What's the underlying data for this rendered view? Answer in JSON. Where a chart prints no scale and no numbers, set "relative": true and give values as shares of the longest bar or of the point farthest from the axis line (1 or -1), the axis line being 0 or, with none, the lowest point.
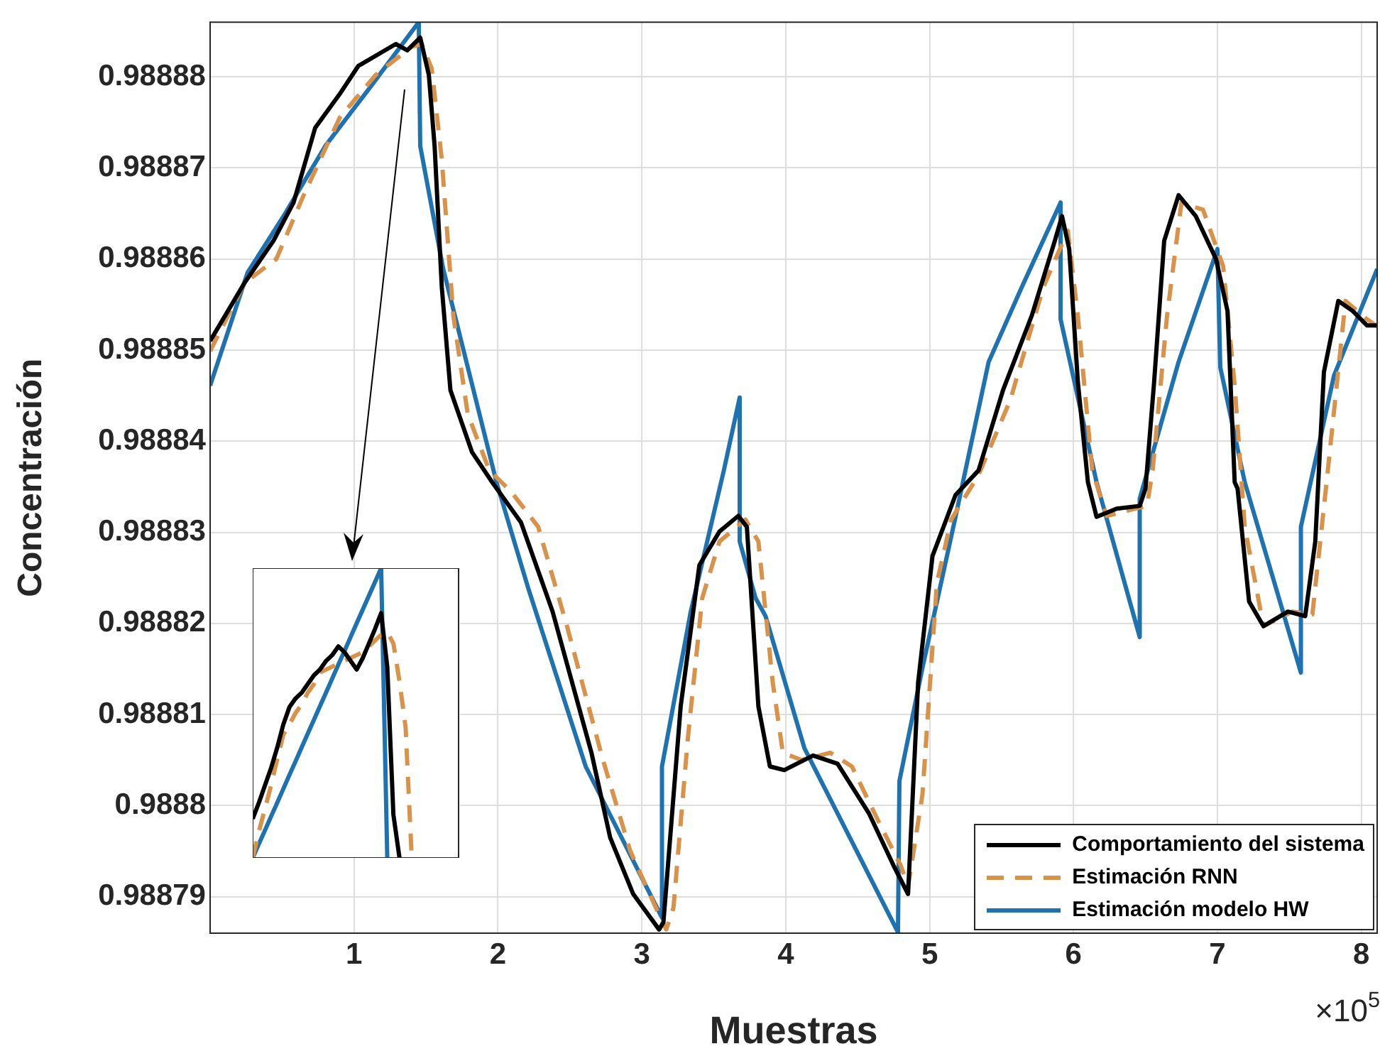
{
  "chart_data": [
    {
      "type": "line",
      "xlabel": "Muestras",
      "ylabel": "Concentración",
      "annotations": [
        "×10$^{5}$"
      ],
      "xlim": [
        0,
        8.11
      ],
      "ylim": [
        0.988786,
        0.988886
      ],
      "xticks": [
        1,
        2,
        3,
        4,
        5,
        6,
        7,
        8
      ],
      "yticks": [
        0.98879,
        0.9888,
        0.98881,
        0.98882,
        0.98883,
        0.98884,
        0.98885,
        0.98886,
        0.98887,
        0.98888
      ],
      "grid": true,
      "legend": "bottom right",
      "marker": "none",
      "series": [
        {
          "name": "Comportamiento del sistema",
          "color": "#000000",
          "line_style": "solid",
          "x": [
            0,
            0.24,
            0.44,
            0.58,
            0.73,
            0.9,
            1.03,
            1.29,
            1.37,
            1.46,
            1.52,
            1.56,
            1.61,
            1.67,
            1.82,
            1.96,
            2.16,
            2.38,
            2.65,
            2.78,
            2.94,
            3.12,
            3.15,
            3.27,
            3.4,
            3.54,
            3.67,
            3.73,
            3.81,
            3.89,
            3.99,
            4.19,
            4.36,
            4.58,
            4.75,
            4.85,
            4.92,
            5.02,
            5.18,
            5.34,
            5.51,
            5.71,
            5.87,
            5.92,
            5.97,
            6.03,
            6.1,
            6.16,
            6.3,
            6.46,
            6.5,
            6.56,
            6.63,
            6.73,
            6.85,
            6.99,
            7.07,
            7.12,
            7.14,
            7.22,
            7.32,
            7.49,
            7.61,
            7.68,
            7.74,
            7.84,
            7.94,
            8.04,
            8.11
          ],
          "values": [
            0.988851,
            0.9888574,
            0.988862,
            0.9888662,
            0.9888744,
            0.9888781,
            0.9888812,
            0.9888836,
            0.9888829,
            0.9888843,
            0.9888802,
            0.9888724,
            0.9888569,
            0.9888456,
            0.9888388,
            0.9888355,
            0.9888311,
            0.9888213,
            0.9888058,
            0.9887965,
            0.9887903,
            0.9887864,
            0.9887872,
            0.9888109,
            0.9888264,
            0.9888301,
            0.9888318,
            0.9888306,
            0.9888109,
            0.9888043,
            0.9888039,
            0.9888055,
            0.9888046,
            0.9887991,
            0.9887934,
            0.9887903,
            0.9888135,
            0.9888274,
            0.9888341,
            0.9888368,
            0.9888456,
            0.9888538,
            0.988862,
            0.9888647,
            0.9888611,
            0.9888465,
            0.9888355,
            0.9888317,
            0.9888326,
            0.9888329,
            0.9888348,
            0.9888465,
            0.988862,
            0.988867,
            0.9888647,
            0.98886,
            0.9888543,
            0.9888355,
            0.9888348,
            0.9888224,
            0.9888197,
            0.9888213,
            0.9888208,
            0.988829,
            0.9888476,
            0.9888554,
            0.9888543,
            0.9888527,
            0.9888527
          ]
        },
        {
          "name": "Estimación RNN",
          "color": "#d9924a",
          "line_style": "dashed",
          "x": [
            0,
            0.24,
            0.46,
            0.65,
            0.9,
            1.15,
            1.4,
            1.47,
            1.54,
            1.61,
            1.69,
            1.79,
            1.94,
            2.09,
            2.28,
            2.48,
            2.73,
            2.92,
            3.12,
            3.17,
            3.22,
            3.32,
            3.42,
            3.54,
            3.72,
            3.81,
            3.91,
            3.98,
            4.11,
            4.31,
            4.46,
            4.65,
            4.8,
            4.85,
            4.95,
            5.05,
            5.15,
            5.34,
            5.56,
            5.79,
            5.96,
            6.03,
            6.13,
            6.23,
            6.43,
            6.51,
            6.55,
            6.65,
            6.75,
            6.9,
            7.04,
            7.12,
            7.19,
            7.32,
            7.52,
            7.66,
            7.76,
            7.89,
            8.03,
            8.11
          ],
          "values": [
            0.9888499,
            0.9888574,
            0.98886,
            0.988867,
            0.9888755,
            0.9888802,
            0.9888833,
            0.9888836,
            0.9888809,
            0.9888709,
            0.9888538,
            0.988843,
            0.9888368,
            0.9888345,
            0.9888306,
            0.9888197,
            0.988805,
            0.988795,
            0.988788,
            0.9887864,
            0.9887888,
            0.9888074,
            0.9888228,
            0.988829,
            0.9888314,
            0.988829,
            0.9888135,
            0.9888058,
            0.988805,
            0.9888058,
            0.9888043,
            0.9887981,
            0.9887934,
            0.9887911,
            0.9888012,
            0.9888244,
            0.9888314,
            0.9888363,
            0.9888445,
            0.9888569,
            0.9888631,
            0.9888538,
            0.9888368,
            0.9888318,
            0.9888326,
            0.9888329,
            0.9888368,
            0.9888538,
            0.9888662,
            0.9888654,
            0.9888592,
            0.9888461,
            0.9888306,
            0.9888197,
            0.9888213,
            0.988821,
            0.9888357,
            0.9888554,
            0.9888535,
            0.9888526
          ]
        },
        {
          "name": "Estimación modelo HW",
          "color": "#1f72b0",
          "line_style": "solid",
          "x": [
            0,
            0.26,
            0.51,
            0.8,
            1.1,
            1.45,
            1.46,
            1.62,
            1.99,
            2.21,
            2.61,
            3.14,
            3.14,
            3.34,
            3.57,
            3.68,
            3.68,
            3.79,
            3.86,
            4.13,
            4.78,
            4.79,
            4.95,
            5.18,
            5.41,
            5.64,
            5.91,
            5.91,
            6.16,
            6.46,
            6.46,
            6.73,
            7,
            7.02,
            7.19,
            7.58,
            7.58,
            7.81,
            8.11
          ],
          "values": [
            0.9888461,
            0.9888585,
            0.9888647,
            0.9888724,
            0.9888786,
            0.988886,
            0.9888724,
            0.9888589,
            0.9888355,
            0.9888239,
            0.9888043,
            0.9887877,
            0.9888043,
            0.9888213,
            0.9888368,
            0.9888448,
            0.988829,
            0.9888228,
            0.9888208,
            0.9888063,
            0.9887861,
            0.9888027,
            0.9888151,
            0.9888317,
            0.9888487,
            0.9888569,
            0.9888662,
            0.9888534,
            0.9888355,
            0.9888185,
            0.9888337,
            0.9888487,
            0.9888611,
            0.9888481,
            0.9888355,
            0.9888146,
            0.9888306,
            0.9888472,
            0.9888589
          ]
        }
      ]
    },
    {
      "type": "line",
      "relative": true,
      "marker": "none",
      "categories": [
        null,
        null,
        null,
        null,
        null,
        null,
        null,
        null,
        null,
        null,
        null,
        null,
        null,
        null,
        null,
        null,
        null,
        null,
        null,
        null,
        null,
        null,
        null,
        null,
        null,
        null,
        null
      ],
      "series": [
        {
          "color": "#000000",
          "line_style": "solid",
          "values": [
            0.135,
            0.19,
            0.25,
            0.31,
            0.38,
            0.46,
            0.52,
            0.55,
            0.57,
            0.6,
            0.63,
            0.65,
            0.68,
            0.7,
            0.73,
            0.71,
            0.68,
            0.65,
            0.69,
            0.74,
            0.79,
            0.845,
            0.66,
            0.15,
            0,
            null,
            null
          ]
        },
        {
          "color": "#d9924a",
          "line_style": "dashed",
          "values": [
            0,
            0.09,
            0.17,
            0.25,
            0.34,
            0.425,
            0.46,
            0.5,
            0.53,
            0.57,
            0.6,
            0.64,
            0.65,
            0.66,
            0.67,
            0.68,
            0.69,
            0.7,
            0.71,
            0.73,
            0.75,
            0.77,
            0.78,
            0.74,
            0.61,
            0.45,
            0
          ]
        },
        {
          "color": "#1f72b0",
          "line_style": "solid",
          "values": [
            0,
            0.048,
            0.095,
            0.143,
            0.19,
            0.238,
            0.286,
            0.333,
            0.381,
            0.429,
            0.476,
            0.524,
            0.571,
            0.619,
            0.667,
            0.714,
            0.762,
            0.81,
            0.857,
            0.905,
            0.952,
            1,
            0,
            null,
            null,
            null,
            null
          ]
        }
      ]
    }
  ]
}
